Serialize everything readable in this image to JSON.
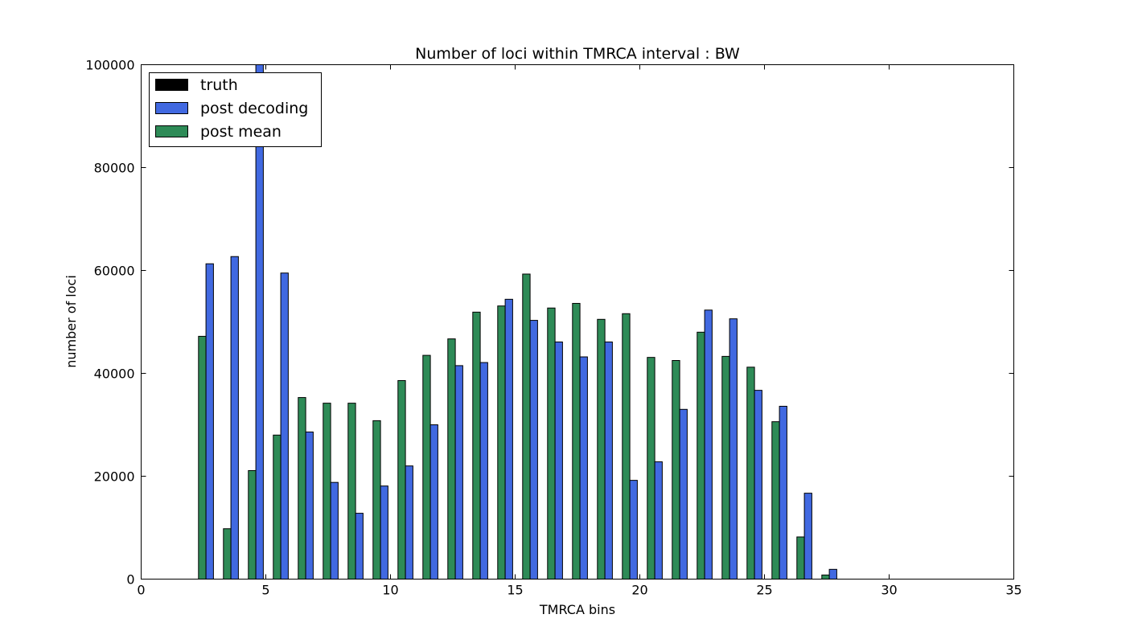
{
  "chart_data": {
    "type": "bar",
    "title": "Number of loci within TMRCA interval : BW",
    "xlabel": "TMRCA bins",
    "ylabel": "number of loci",
    "xlim": [
      0,
      35
    ],
    "ylim": [
      0,
      100000
    ],
    "xticks": [
      "0",
      "5",
      "10",
      "15",
      "20",
      "25",
      "30",
      "35"
    ],
    "yticks": [
      "0",
      "20000",
      "40000",
      "60000",
      "80000",
      "100000"
    ],
    "legend_position": "upper-left",
    "grid": false,
    "bin_start": 1,
    "series": [
      {
        "name": "truth",
        "color": "#000000",
        "offset": 0,
        "values": [
          0,
          0,
          0,
          0,
          0,
          0,
          0,
          0,
          0,
          0,
          0,
          0,
          0,
          0,
          0,
          0,
          0,
          0,
          0,
          0,
          0,
          0,
          0,
          0,
          0,
          0,
          0,
          0,
          0,
          0,
          0
        ]
      },
      {
        "name": "post mean",
        "color": "#2e8b57",
        "offset": 1,
        "values": [
          0,
          47200,
          9800,
          21100,
          28000,
          35300,
          34200,
          34200,
          30800,
          38600,
          43500,
          46700,
          51900,
          53100,
          59300,
          52700,
          53600,
          50500,
          51600,
          43100,
          42500,
          48000,
          43300,
          41200,
          30600,
          8200,
          800,
          0,
          0,
          0,
          0
        ]
      },
      {
        "name": "post decoding",
        "color": "#4169e1",
        "offset": 2,
        "values": [
          0,
          61300,
          62700,
          100000,
          59500,
          28600,
          18800,
          12800,
          18100,
          22000,
          30000,
          41500,
          42100,
          54400,
          50300,
          46100,
          43200,
          46100,
          19200,
          22800,
          33000,
          52300,
          50600,
          36700,
          33600,
          16700,
          1900,
          0,
          0,
          0,
          0
        ]
      }
    ]
  }
}
